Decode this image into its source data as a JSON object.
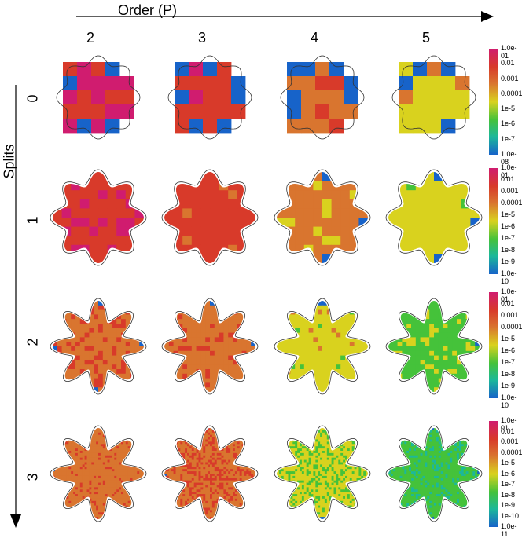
{
  "axes": {
    "x_title": "Order (P)",
    "y_title": "Splits"
  },
  "columns": [
    "2",
    "3",
    "4",
    "5"
  ],
  "rows": [
    "0",
    "1",
    "2",
    "3"
  ],
  "colorbars": [
    {
      "ticks": [
        "1.0e-01",
        "0.01",
        "0.001",
        "0.0001",
        "1e-5",
        "1e-6",
        "1e-7",
        "1.0e-08"
      ]
    },
    {
      "ticks": [
        "1.0e-01",
        "0.01",
        "0.001",
        "0.0001",
        "1e-5",
        "1e-6",
        "1e-7",
        "1e-8",
        "1e-9",
        "1.0e-10"
      ]
    },
    {
      "ticks": [
        "1.0e-01",
        "0.01",
        "0.001",
        "0.0001",
        "1e-5",
        "1e-6",
        "1e-7",
        "1e-8",
        "1e-9",
        "1.0e-10"
      ]
    },
    {
      "ticks": [
        "1.0e-01",
        "0.01",
        "0.001",
        "0.0001",
        "1e-5",
        "1e-6",
        "1e-7",
        "1e-8",
        "1e-9",
        "1e-10",
        "1.0e-11"
      ]
    }
  ],
  "colors": {
    "high": "#d01c6f",
    "red": "#d83a2a",
    "orange": "#d9752f",
    "yellow": "#d9d21e",
    "green": "#45c23a",
    "teal": "#1cb89a",
    "blue": "#1763c9"
  },
  "cell_levels": [
    [
      0.95,
      0.85,
      0.7,
      0.55
    ],
    [
      0.88,
      0.82,
      0.65,
      0.5
    ],
    [
      0.7,
      0.68,
      0.5,
      0.35
    ],
    [
      0.68,
      0.72,
      0.45,
      0.3
    ]
  ]
}
